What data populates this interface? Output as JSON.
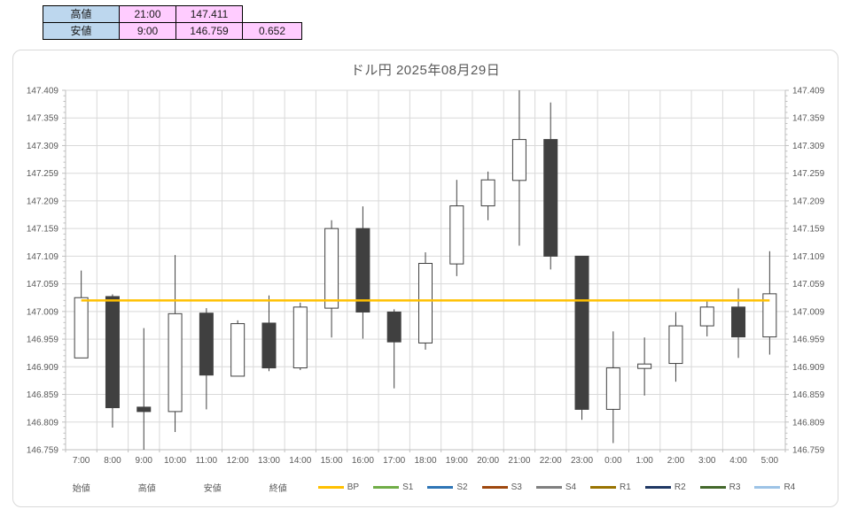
{
  "summary_table": {
    "rows": [
      {
        "label": "高値",
        "time": "21:00",
        "price": "147.411",
        "diff": ""
      },
      {
        "label": "安値",
        "time": "9:00",
        "price": "146.759",
        "diff": "0.652"
      }
    ]
  },
  "chart": {
    "title": "ドル円  2025年08月29日"
  },
  "chart_data": {
    "type": "candlestick",
    "title": "ドル円  2025年08月29日",
    "categories": [
      "7:00",
      "8:00",
      "9:00",
      "10:00",
      "11:00",
      "12:00",
      "13:00",
      "14:00",
      "15:00",
      "16:00",
      "17:00",
      "18:00",
      "19:00",
      "20:00",
      "21:00",
      "22:00",
      "23:00",
      "0:00",
      "1:00",
      "2:00",
      "3:00",
      "4:00",
      "5:00"
    ],
    "ohlc": [
      [
        146.925,
        147.083,
        146.925,
        147.034
      ],
      [
        147.036,
        147.04,
        146.799,
        146.835
      ],
      [
        146.836,
        146.979,
        146.759,
        146.828
      ],
      [
        146.828,
        147.111,
        146.791,
        147.005
      ],
      [
        147.006,
        147.015,
        146.832,
        146.894
      ],
      [
        146.892,
        146.993,
        146.892,
        146.987
      ],
      [
        146.988,
        147.038,
        146.901,
        146.907
      ],
      [
        146.907,
        147.025,
        146.903,
        147.017
      ],
      [
        147.015,
        147.174,
        146.962,
        147.159
      ],
      [
        147.159,
        147.199,
        146.96,
        147.008
      ],
      [
        147.008,
        147.013,
        146.87,
        146.954
      ],
      [
        146.952,
        147.116,
        146.94,
        147.096
      ],
      [
        147.095,
        147.247,
        147.073,
        147.2
      ],
      [
        147.2,
        147.262,
        147.174,
        147.247
      ],
      [
        147.246,
        147.411,
        147.128,
        147.32
      ],
      [
        147.32,
        147.387,
        147.085,
        147.109
      ],
      [
        147.109,
        147.109,
        146.813,
        146.832
      ],
      [
        146.832,
        146.973,
        146.771,
        146.907
      ],
      [
        146.906,
        146.962,
        146.857,
        146.914
      ],
      [
        146.915,
        147.008,
        146.882,
        146.983
      ],
      [
        146.983,
        147.027,
        146.964,
        147.017
      ],
      [
        147.017,
        147.051,
        146.925,
        146.963
      ],
      [
        146.963,
        147.118,
        146.931,
        147.041
      ]
    ],
    "ylim": [
      146.759,
      147.409
    ],
    "ytick_step": 0.05,
    "y_minor_step": 0.01,
    "y_decimals": 3,
    "grid": true,
    "colors": {
      "bullish_fill": "#FFFFFF",
      "bearish_fill": "#404040",
      "candle_stroke": "#404040",
      "gridline": "#D9D9D9",
      "axis_line": "#BFBFBF",
      "label_text": "#595959"
    },
    "overlay_lines": [
      {
        "name": "BP",
        "value": 147.029,
        "color": "#FFC000"
      }
    ],
    "legend_position": "bottom",
    "legend": [
      {
        "label": "始値",
        "color": null
      },
      {
        "label": "高値",
        "color": null
      },
      {
        "label": "安値",
        "color": null
      },
      {
        "label": "終値",
        "color": null
      },
      {
        "label": "BP",
        "color": "#FFC000"
      },
      {
        "label": "S1",
        "color": "#70AD47"
      },
      {
        "label": "S2",
        "color": "#2E75B6"
      },
      {
        "label": "S3",
        "color": "#9E480E"
      },
      {
        "label": "S4",
        "color": "#7F7F7F"
      },
      {
        "label": "R1",
        "color": "#997300"
      },
      {
        "label": "R2",
        "color": "#1F3864"
      },
      {
        "label": "R3",
        "color": "#43682B"
      },
      {
        "label": "R4",
        "color": "#9DC3E6"
      }
    ]
  }
}
